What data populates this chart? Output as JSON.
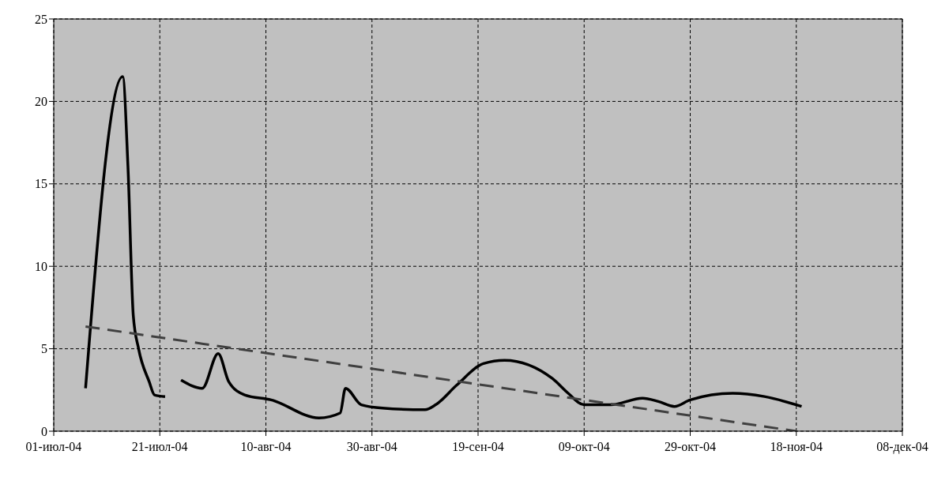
{
  "chart_data": {
    "type": "line",
    "marker": "none",
    "grid": true,
    "xlim": [
      "2004-07-01",
      "2004-12-08"
    ],
    "xticks": [
      {
        "value": "2004-07-01",
        "label": "01-июл-04"
      },
      {
        "value": "2004-07-21",
        "label": "21-июл-04"
      },
      {
        "value": "2004-08-10",
        "label": "10-авг-04"
      },
      {
        "value": "2004-08-30",
        "label": "30-авг-04"
      },
      {
        "value": "2004-09-19",
        "label": "19-сен-04"
      },
      {
        "value": "2004-10-09",
        "label": "09-окт-04"
      },
      {
        "value": "2004-10-29",
        "label": "29-окт-04"
      },
      {
        "value": "2004-11-18",
        "label": "18-ноя-04"
      },
      {
        "value": "2004-12-08",
        "label": "08-дек-04"
      }
    ],
    "ylim": [
      0,
      25
    ],
    "yticks": [
      0,
      5,
      10,
      15,
      20,
      25
    ],
    "series": [
      {
        "color": "#000000",
        "line_style": "solid",
        "x": [
          "2004-07-07",
          "2004-07-14",
          "2004-07-15",
          "2004-07-16",
          "2004-07-17",
          "2004-07-19",
          "2004-07-20",
          "2004-07-22",
          "2004-07-23",
          "2004-07-25",
          "2004-07-29",
          "2004-08-01",
          "2004-08-03",
          "2004-08-06",
          "2004-08-11",
          "2004-08-20",
          "2004-08-24",
          "2004-08-25",
          "2004-08-28",
          "2004-09-01",
          "2004-09-09",
          "2004-09-11",
          "2004-09-15",
          "2004-09-20",
          "2004-09-24",
          "2004-10-03",
          "2004-10-06",
          "2004-10-09",
          "2004-10-14",
          "2004-10-20",
          "2004-10-23",
          "2004-10-26",
          "2004-10-29",
          "2004-11-06",
          "2004-11-12",
          "2004-11-19"
        ],
        "values": [
          2.6,
          21.5,
          16,
          7,
          5,
          3,
          2.2,
          2.1,
          null,
          3.1,
          2.6,
          4.7,
          3,
          2.2,
          1.9,
          0.8,
          1.1,
          2.6,
          1.6,
          1.4,
          1.3,
          1.6,
          2.8,
          4.1,
          4.3,
          3.2,
          2.3,
          1.6,
          1.6,
          2,
          1.8,
          1.5,
          1.9,
          2.3,
          2.1,
          1.5
        ]
      },
      {
        "type": "line",
        "color": "#404040",
        "line_style": "dashed",
        "x": [
          "2004-07-07",
          "2004-11-18"
        ],
        "values": [
          6.35,
          0
        ]
      }
    ]
  }
}
